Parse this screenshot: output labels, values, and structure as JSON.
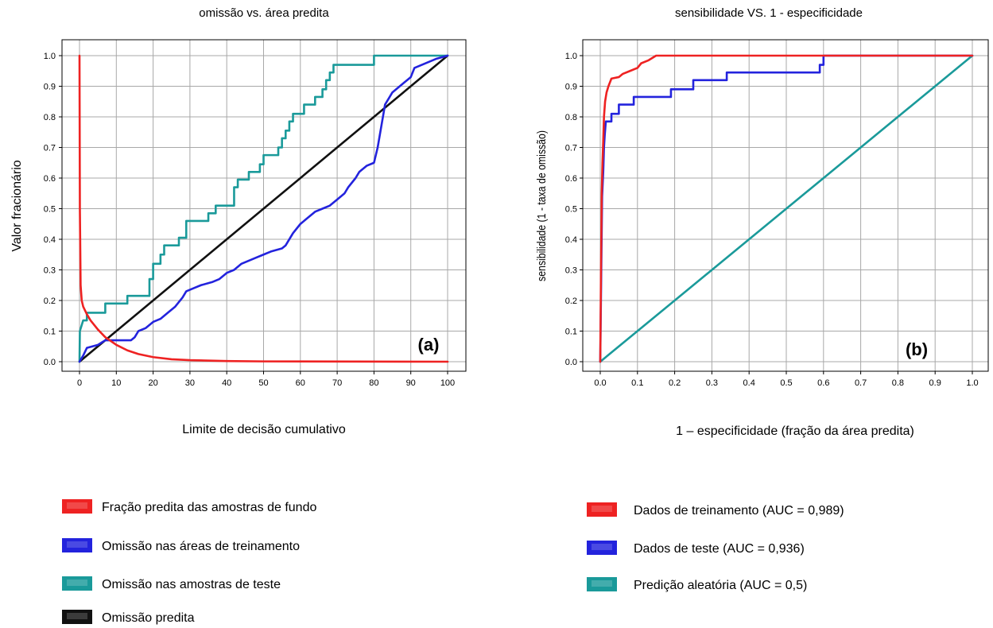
{
  "colors": {
    "red": "#ee2222",
    "blue": "#2323dd",
    "teal": "#1a9a9a",
    "black": "#111111",
    "grid": "#a8a8a8"
  },
  "chart_data": [
    {
      "id": "a",
      "type": "line",
      "title": "omissão vs. área predita",
      "xlabel": "Limite de decisão cumulativo",
      "ylabel": "Valor fracionário",
      "panel_label": "(a)",
      "xlim": [
        0,
        100
      ],
      "ylim": [
        0,
        1
      ],
      "x_ticks": [
        0,
        10,
        20,
        30,
        40,
        50,
        60,
        70,
        80,
        90,
        100
      ],
      "x_tick_labels": [
        "0",
        "10",
        "20",
        "30",
        "40",
        "50",
        "60",
        "70",
        "80",
        "90",
        "100"
      ],
      "y_ticks": [
        0,
        0.1,
        0.2,
        0.3,
        0.4,
        0.5,
        0.6,
        0.7,
        0.8,
        0.9,
        1.0
      ],
      "y_tick_labels": [
        "0.0",
        "0.1",
        "0.2",
        "0.3",
        "0.4",
        "0.5",
        "0.6",
        "0.7",
        "0.8",
        "0.9",
        "1.0"
      ],
      "grid": true,
      "legend_position": "bottom",
      "series": [
        {
          "name": "Fração predita das amostras de fundo",
          "color": "red",
          "points": [
            [
              0,
              1.0
            ],
            [
              0.1,
              0.5
            ],
            [
              0.3,
              0.25
            ],
            [
              0.6,
              0.2
            ],
            [
              1,
              0.18
            ],
            [
              2,
              0.155
            ],
            [
              3,
              0.135
            ],
            [
              5,
              0.105
            ],
            [
              7,
              0.08
            ],
            [
              10,
              0.055
            ],
            [
              13,
              0.037
            ],
            [
              16,
              0.025
            ],
            [
              20,
              0.015
            ],
            [
              25,
              0.008
            ],
            [
              30,
              0.005
            ],
            [
              40,
              0.002
            ],
            [
              50,
              0.001
            ],
            [
              100,
              0.0
            ]
          ]
        },
        {
          "name": "Omissão nas áreas de treinamento",
          "color": "blue",
          "points": [
            [
              0,
              0.0
            ],
            [
              1,
              0.02
            ],
            [
              2,
              0.045
            ],
            [
              5,
              0.055
            ],
            [
              7,
              0.07
            ],
            [
              14,
              0.07
            ],
            [
              15,
              0.08
            ],
            [
              16,
              0.1
            ],
            [
              18,
              0.11
            ],
            [
              20,
              0.13
            ],
            [
              22,
              0.14
            ],
            [
              24,
              0.16
            ],
            [
              26,
              0.18
            ],
            [
              28,
              0.21
            ],
            [
              29,
              0.23
            ],
            [
              31,
              0.24
            ],
            [
              33,
              0.25
            ],
            [
              36,
              0.26
            ],
            [
              38,
              0.27
            ],
            [
              40,
              0.29
            ],
            [
              42,
              0.3
            ],
            [
              44,
              0.32
            ],
            [
              46,
              0.33
            ],
            [
              48,
              0.34
            ],
            [
              50,
              0.35
            ],
            [
              52,
              0.36
            ],
            [
              55,
              0.37
            ],
            [
              56,
              0.38
            ],
            [
              58,
              0.42
            ],
            [
              60,
              0.45
            ],
            [
              62,
              0.47
            ],
            [
              64,
              0.49
            ],
            [
              66,
              0.5
            ],
            [
              68,
              0.51
            ],
            [
              70,
              0.53
            ],
            [
              72,
              0.55
            ],
            [
              73,
              0.57
            ],
            [
              75,
              0.6
            ],
            [
              76,
              0.62
            ],
            [
              78,
              0.64
            ],
            [
              80,
              0.65
            ],
            [
              81,
              0.7
            ],
            [
              82,
              0.77
            ],
            [
              83,
              0.84
            ],
            [
              84,
              0.86
            ],
            [
              85,
              0.88
            ],
            [
              86,
              0.89
            ],
            [
              88,
              0.91
            ],
            [
              90,
              0.93
            ],
            [
              91,
              0.96
            ],
            [
              93,
              0.97
            ],
            [
              95,
              0.98
            ],
            [
              97,
              0.99
            ],
            [
              100,
              1.0
            ]
          ]
        },
        {
          "name": "Omissão nas amostras de teste",
          "color": "teal",
          "points": [
            [
              0,
              0.0
            ],
            [
              0.1,
              0.1
            ],
            [
              1,
              0.135
            ],
            [
              2,
              0.135
            ],
            [
              2,
              0.16
            ],
            [
              7,
              0.16
            ],
            [
              7,
              0.19
            ],
            [
              13,
              0.19
            ],
            [
              13,
              0.215
            ],
            [
              19,
              0.215
            ],
            [
              19,
              0.27
            ],
            [
              20,
              0.27
            ],
            [
              20,
              0.32
            ],
            [
              22,
              0.32
            ],
            [
              22,
              0.35
            ],
            [
              23,
              0.35
            ],
            [
              23,
              0.38
            ],
            [
              27,
              0.38
            ],
            [
              27,
              0.405
            ],
            [
              29,
              0.405
            ],
            [
              29,
              0.46
            ],
            [
              35,
              0.46
            ],
            [
              35,
              0.485
            ],
            [
              37,
              0.485
            ],
            [
              37,
              0.51
            ],
            [
              42,
              0.51
            ],
            [
              42,
              0.57
            ],
            [
              43,
              0.57
            ],
            [
              43,
              0.595
            ],
            [
              46,
              0.595
            ],
            [
              46,
              0.62
            ],
            [
              49,
              0.62
            ],
            [
              49,
              0.645
            ],
            [
              50,
              0.645
            ],
            [
              50,
              0.675
            ],
            [
              54,
              0.675
            ],
            [
              54,
              0.7
            ],
            [
              55,
              0.7
            ],
            [
              55,
              0.73
            ],
            [
              56,
              0.73
            ],
            [
              56,
              0.755
            ],
            [
              57,
              0.755
            ],
            [
              57,
              0.785
            ],
            [
              58,
              0.785
            ],
            [
              58,
              0.81
            ],
            [
              61,
              0.81
            ],
            [
              61,
              0.84
            ],
            [
              64,
              0.84
            ],
            [
              64,
              0.865
            ],
            [
              66,
              0.865
            ],
            [
              66,
              0.89
            ],
            [
              67,
              0.89
            ],
            [
              67,
              0.92
            ],
            [
              68,
              0.92
            ],
            [
              68,
              0.945
            ],
            [
              69,
              0.945
            ],
            [
              69,
              0.97
            ],
            [
              80,
              0.97
            ],
            [
              80,
              1.0
            ],
            [
              100,
              1.0
            ]
          ]
        },
        {
          "name": "Omissão predita",
          "color": "black",
          "points": [
            [
              0,
              0.0
            ],
            [
              100,
              1.0
            ]
          ]
        }
      ]
    },
    {
      "id": "b",
      "type": "line",
      "title": "sensibilidade VS. 1 - especificidade",
      "xlabel": "1 – especificidade (fração da área predita)",
      "ylabel": "sensibilidade (1 - taxa de omissão)",
      "panel_label": "(b)",
      "xlim": [
        0,
        1
      ],
      "ylim": [
        0,
        1
      ],
      "x_ticks": [
        0,
        0.1,
        0.2,
        0.3,
        0.4,
        0.5,
        0.6,
        0.7,
        0.8,
        0.9,
        1.0
      ],
      "x_tick_labels": [
        "0.0",
        "0.1",
        "0.2",
        "0.3",
        "0.4",
        "0.5",
        "0.6",
        "0.7",
        "0.8",
        "0.9",
        "1.0"
      ],
      "y_ticks": [
        0,
        0.1,
        0.2,
        0.3,
        0.4,
        0.5,
        0.6,
        0.7,
        0.8,
        0.9,
        1.0
      ],
      "y_tick_labels": [
        "0.0",
        "0.1",
        "0.2",
        "0.3",
        "0.4",
        "0.5",
        "0.6",
        "0.7",
        "0.8",
        "0.9",
        "1.0"
      ],
      "grid": true,
      "legend_position": "bottom",
      "series": [
        {
          "name": "Dados de treinamento (AUC = 0,989)",
          "color": "red",
          "points": [
            [
              0,
              0.0
            ],
            [
              0.002,
              0.3
            ],
            [
              0.004,
              0.55
            ],
            [
              0.006,
              0.65
            ],
            [
              0.008,
              0.72
            ],
            [
              0.01,
              0.8
            ],
            [
              0.013,
              0.85
            ],
            [
              0.017,
              0.88
            ],
            [
              0.022,
              0.9
            ],
            [
              0.03,
              0.925
            ],
            [
              0.05,
              0.93
            ],
            [
              0.06,
              0.94
            ],
            [
              0.08,
              0.95
            ],
            [
              0.1,
              0.96
            ],
            [
              0.11,
              0.975
            ],
            [
              0.13,
              0.985
            ],
            [
              0.15,
              1.0
            ],
            [
              1.0,
              1.0
            ]
          ]
        },
        {
          "name": "Dados de teste (AUC = 0,936)",
          "color": "blue",
          "points": [
            [
              0,
              0.0
            ],
            [
              0.003,
              0.33
            ],
            [
              0.005,
              0.54
            ],
            [
              0.008,
              0.62
            ],
            [
              0.01,
              0.7
            ],
            [
              0.012,
              0.74
            ],
            [
              0.015,
              0.785
            ],
            [
              0.03,
              0.785
            ],
            [
              0.03,
              0.81
            ],
            [
              0.05,
              0.81
            ],
            [
              0.05,
              0.84
            ],
            [
              0.09,
              0.84
            ],
            [
              0.09,
              0.865
            ],
            [
              0.19,
              0.865
            ],
            [
              0.19,
              0.89
            ],
            [
              0.25,
              0.89
            ],
            [
              0.25,
              0.92
            ],
            [
              0.34,
              0.92
            ],
            [
              0.34,
              0.945
            ],
            [
              0.59,
              0.945
            ],
            [
              0.59,
              0.97
            ],
            [
              0.6,
              0.97
            ],
            [
              0.6,
              1.0
            ],
            [
              1.0,
              1.0
            ]
          ]
        },
        {
          "name": "Predição aleatória (AUC = 0,5)",
          "color": "teal",
          "points": [
            [
              0,
              0.0
            ],
            [
              1,
              1.0
            ]
          ]
        }
      ]
    }
  ]
}
